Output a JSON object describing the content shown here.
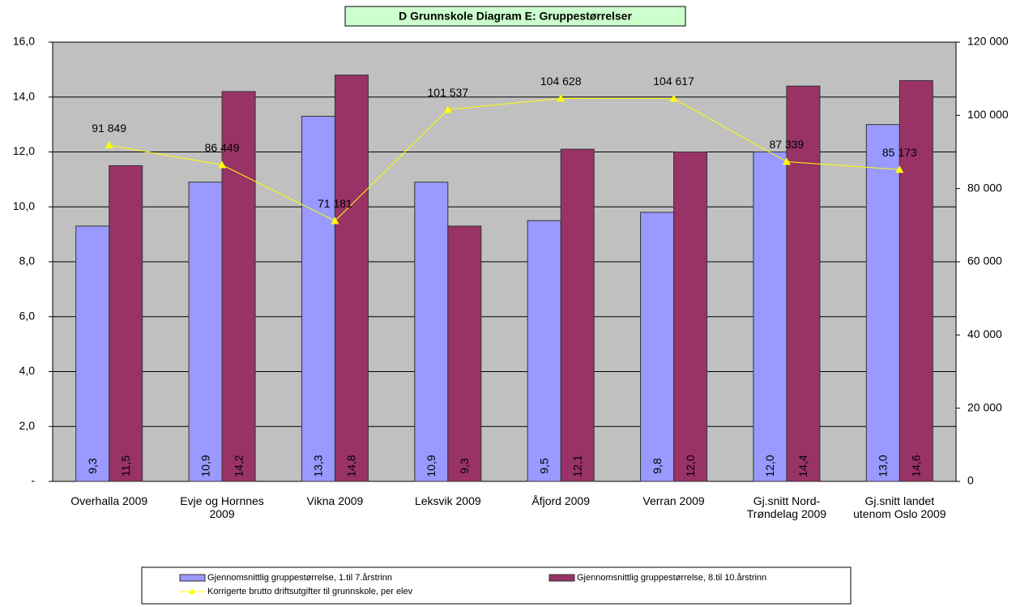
{
  "chart_data": {
    "type": "bar",
    "title": "D Grunnskole Diagram E: Gruppestørrelser",
    "categories": [
      "Overhalla 2009",
      "Evje og Hornnes 2009",
      "Vikna 2009",
      "Leksvik 2009",
      "Åfjord 2009",
      "Verran 2009",
      "Gj.snitt Nord-Trøndelag 2009",
      "Gj.snitt landet utenom Oslo 2009"
    ],
    "series": [
      {
        "name": "Gjennomsnittlig gruppestørrelse, 1.til 7.årstrinn",
        "type": "bar",
        "color": "#9999ff",
        "values": [
          9.3,
          10.9,
          13.3,
          10.9,
          9.5,
          9.8,
          12.0,
          13.0
        ],
        "value_labels": [
          "9,3",
          "10,9",
          "13,3",
          "10,9",
          "9,5",
          "9,8",
          "12,0",
          "13,0"
        ]
      },
      {
        "name": "Gjennomsnittlig gruppestørrelse, 8.til 10.årstrinn",
        "type": "bar",
        "color": "#993366",
        "values": [
          11.5,
          14.2,
          14.8,
          9.3,
          12.1,
          12.0,
          14.4,
          14.6
        ],
        "value_labels": [
          "11,5",
          "14,2",
          "14,8",
          "9,3",
          "12,1",
          "12,0",
          "14,4",
          "14,6"
        ]
      },
      {
        "name": "Korrigerte brutto driftsutgifter til grunnskole, per elev",
        "type": "line",
        "axis": "y2",
        "color": "#ffff00",
        "values": [
          91849,
          86449,
          71181,
          101537,
          104628,
          104617,
          87339,
          85173
        ],
        "value_labels": [
          "91 849",
          "86 449",
          "71 181",
          "101 537",
          "104 628",
          "104 617",
          "87 339",
          "85 173"
        ]
      }
    ],
    "ylim": [
      0,
      16
    ],
    "yticks": [
      {
        "value": 0,
        "label": "-"
      },
      {
        "value": 2,
        "label": "2,0"
      },
      {
        "value": 4,
        "label": "4,0"
      },
      {
        "value": 6,
        "label": "6,0"
      },
      {
        "value": 8,
        "label": "8,0"
      },
      {
        "value": 10,
        "label": "10,0"
      },
      {
        "value": 12,
        "label": "12,0"
      },
      {
        "value": 14,
        "label": "14,0"
      },
      {
        "value": 16,
        "label": "16,0"
      }
    ],
    "y2lim": [
      0,
      120000
    ],
    "y2ticks": [
      0,
      {
        "value": 20000,
        "label": "20 000"
      },
      {
        "value": 40000,
        "label": "40 000"
      },
      {
        "value": 60000,
        "label": "60 000"
      },
      {
        "value": 80000,
        "label": "80 000"
      },
      {
        "value": 100000,
        "label": "100 000"
      },
      {
        "value": 120000,
        "label": "120 000"
      }
    ],
    "grid": true,
    "legend": "bottom"
  }
}
